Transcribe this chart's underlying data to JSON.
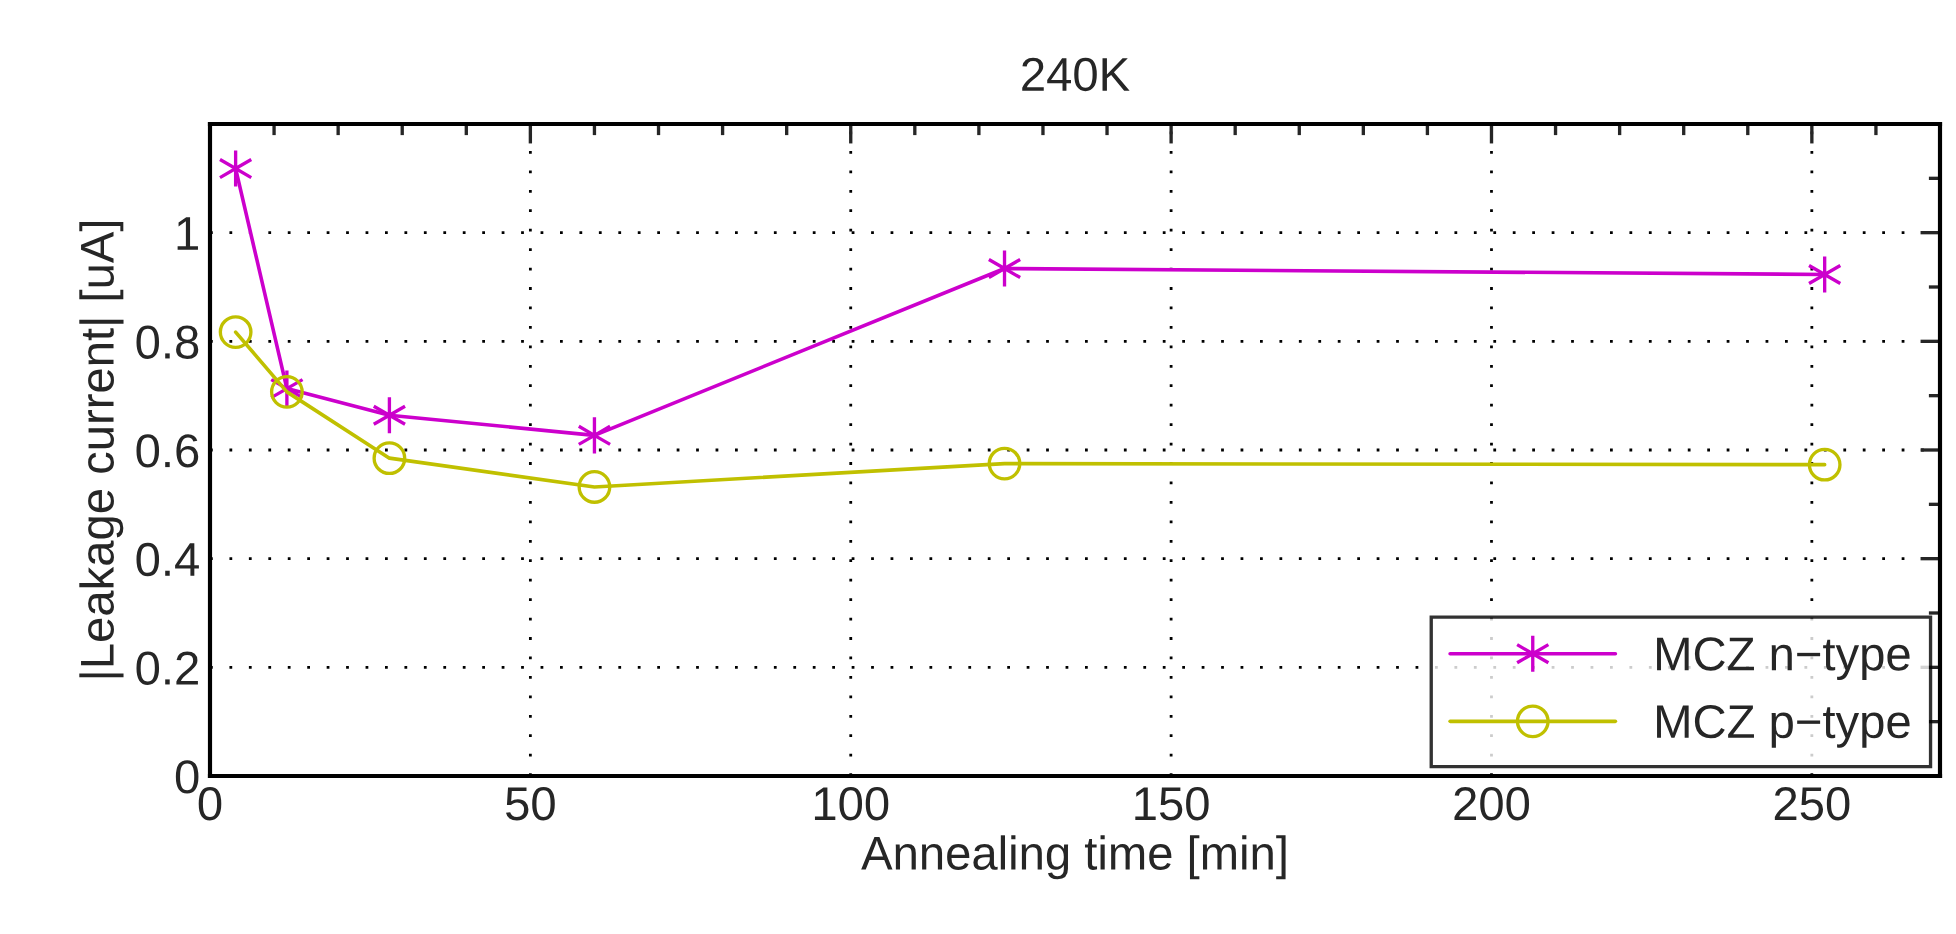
{
  "chart_data": {
    "type": "line",
    "title": "240K",
    "xlabel": "Annealing time [min]",
    "ylabel": "|Leakage current| [uA]",
    "x": [
      4,
      12,
      28,
      60,
      124,
      252
    ],
    "series": [
      {
        "name": "MCZ n−type",
        "color": "#cc00cc",
        "marker": "cross",
        "values": [
          1.118,
          0.713,
          0.664,
          0.627,
          0.934,
          0.923
        ]
      },
      {
        "name": "MCZ p−type",
        "color": "#c0c000",
        "marker": "circle",
        "values": [
          0.817,
          0.707,
          0.585,
          0.532,
          0.575,
          0.573
        ]
      }
    ],
    "xlim": [
      0,
      270
    ],
    "xticks": [
      0,
      50,
      100,
      150,
      200,
      250
    ],
    "ylim": [
      0,
      1.2
    ],
    "yticks": [
      0,
      0.2,
      0.4,
      0.6,
      0.8,
      1
    ],
    "grid": true,
    "legend": "bottom right",
    "line_style": "solid"
  }
}
